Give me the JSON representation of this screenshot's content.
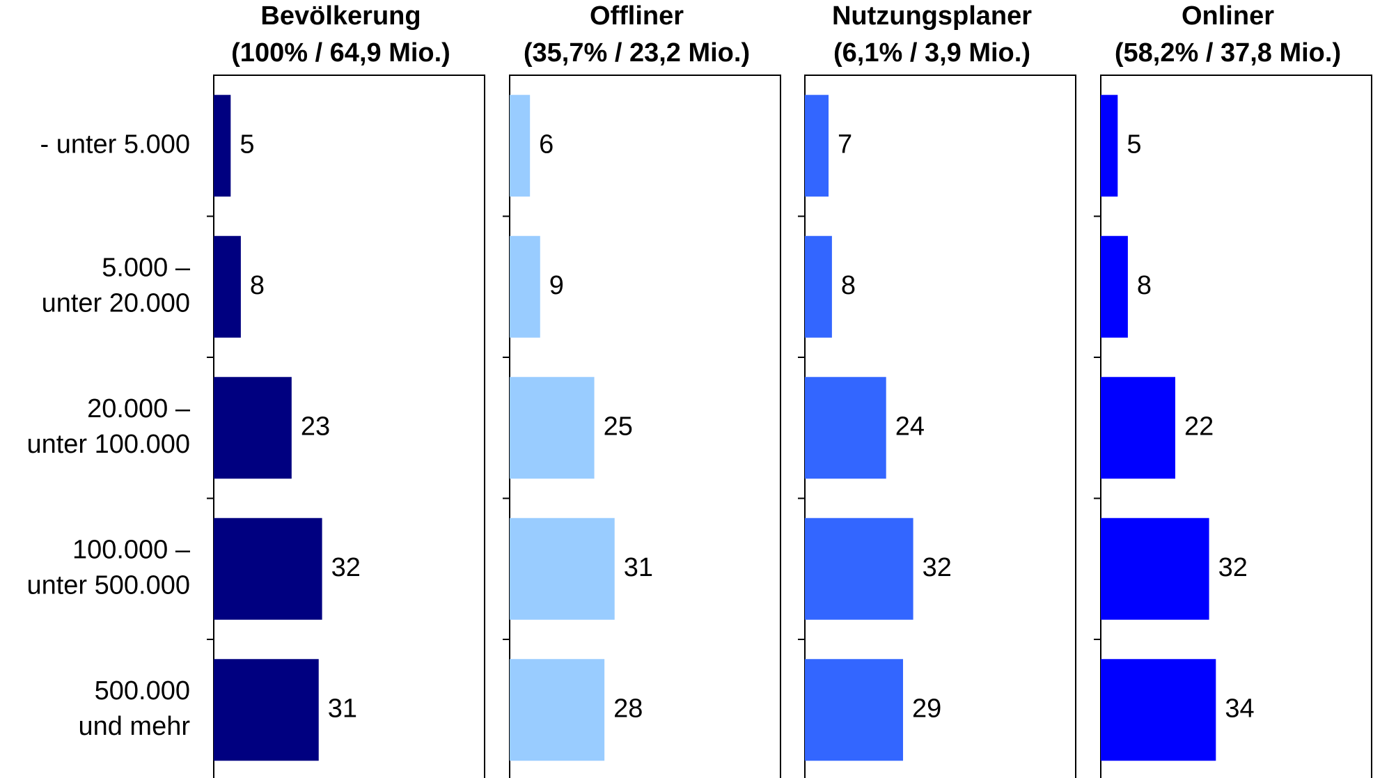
{
  "chart_data": {
    "type": "bar",
    "categories": [
      [
        "- unter 5.000"
      ],
      [
        "5.000 –",
        "unter 20.000"
      ],
      [
        "20.000 –",
        "unter 100.000"
      ],
      [
        "100.000 –",
        "unter 500.000"
      ],
      [
        "500.000",
        "und mehr"
      ]
    ],
    "xlim": [
      0,
      80
    ],
    "series": [
      {
        "name": "Bevölkerung",
        "label": "(100% / 64,9 Mio.)",
        "color": "#000080",
        "values": [
          5,
          8,
          23,
          32,
          31
        ]
      },
      {
        "name": "Offliner",
        "label": "(35,7% / 23,2 Mio.)",
        "color": "#99ccff",
        "values": [
          6,
          9,
          25,
          31,
          28
        ]
      },
      {
        "name": "Nutzungsplaner",
        "label": "(6,1% / 3,9 Mio.)",
        "color": "#3366ff",
        "values": [
          7,
          8,
          24,
          32,
          29
        ]
      },
      {
        "name": "Onliner",
        "label": "(58,2% / 37,8 Mio.)",
        "color": "#0000ff",
        "values": [
          5,
          8,
          22,
          32,
          34
        ]
      }
    ]
  }
}
